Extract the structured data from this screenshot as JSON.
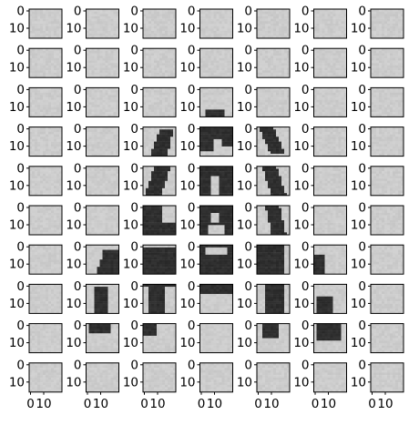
{
  "chart_data": {
    "type": "heatmap",
    "layout": {
      "rows": 10,
      "cols": 7
    },
    "panel_y_tick_labels": [
      "0",
      "10"
    ],
    "panel_x_tick_labels": [
      "0",
      "10"
    ],
    "colormap": "gray",
    "description_levels": "cell intensity: 0 = black, 1 = white",
    "panels": [
      [
        "bg",
        "bg",
        "bg",
        "bg",
        "bg",
        "bg",
        "bg"
      ],
      [
        "bg",
        "bg",
        "bg",
        "bg",
        "bg",
        "bg",
        "bg"
      ],
      [
        "bg",
        "bg",
        "bg",
        "a-top",
        "bg",
        "bg",
        "bg"
      ],
      [
        "bg",
        "bg",
        "a-left-upper",
        "a-mid-top",
        "a-right-upper",
        "bg",
        "bg"
      ],
      [
        "bg",
        "bg",
        "a-left-mid",
        "a-mid-dark",
        "a-right-mid",
        "bg",
        "bg"
      ],
      [
        "bg",
        "bg",
        "a-left-crossbar",
        "a-apex",
        "a-right-crossbar",
        "bg",
        "bg"
      ],
      [
        "bg",
        "a-left-edge",
        "a-crossbar-l",
        "a-crossbar-m",
        "a-crossbar-r",
        "a-right-edge",
        "bg"
      ],
      [
        "bg",
        "a-leftfoot-top",
        "a-foot-l",
        "a-foot-m",
        "a-foot-r",
        "a-rightfoot-top",
        "bg"
      ],
      [
        "bg",
        "a-leftfoot-bot",
        "a-foot-l-bot",
        "bg",
        "a-foot-r-bot",
        "a-rightfoot-bot",
        "bg"
      ],
      [
        "bg",
        "bg",
        "bg",
        "bg",
        "bg",
        "bg",
        "bg"
      ]
    ]
  }
}
